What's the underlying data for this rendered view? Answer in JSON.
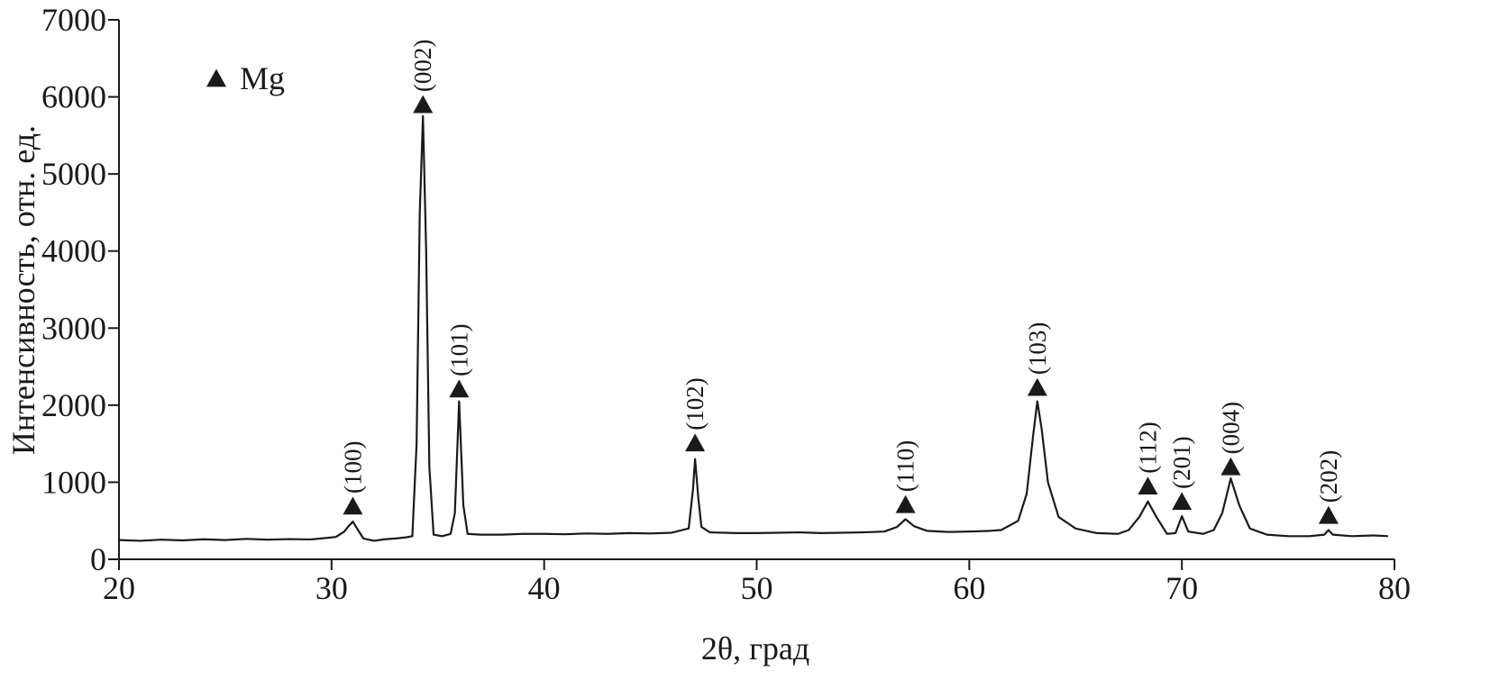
{
  "chart_data": {
    "type": "line",
    "xlabel": "2θ, град",
    "ylabel": "Интенсивность, отн. ед.",
    "xlim": [
      20,
      80
    ],
    "ylim": [
      0,
      7000
    ],
    "xticks": [
      20,
      30,
      40,
      50,
      60,
      70,
      80
    ],
    "yticks": [
      0,
      1000,
      2000,
      3000,
      4000,
      5000,
      6000,
      7000
    ],
    "grid": false,
    "legend": "upper left",
    "x": [
      20,
      21,
      22,
      23,
      24,
      25,
      26,
      27,
      28,
      29,
      29.5,
      30.2,
      30.6,
      30.8,
      31.0,
      31.2,
      31.5,
      32,
      32.5,
      33,
      33.5,
      33.8,
      34.0,
      34.15,
      34.3,
      34.45,
      34.6,
      34.8,
      35.2,
      35.6,
      35.8,
      36.0,
      36.2,
      36.4,
      37,
      38,
      39,
      40,
      41,
      42,
      43,
      44,
      45,
      46,
      46.8,
      47.0,
      47.1,
      47.25,
      47.4,
      47.8,
      49,
      50,
      51,
      52,
      53,
      54,
      55,
      56,
      56.6,
      57.0,
      57.4,
      58,
      59,
      60,
      61,
      61.5,
      62.3,
      62.7,
      63.0,
      63.2,
      63.4,
      63.7,
      64.2,
      65,
      66,
      67,
      67.5,
      68.0,
      68.4,
      68.8,
      69.3,
      69.7,
      70.0,
      70.3,
      71,
      71.5,
      71.9,
      72.3,
      72.7,
      73.2,
      74,
      75,
      76,
      76.7,
      76.9,
      77.1,
      78,
      79,
      79.7
    ],
    "series": [
      {
        "name": "Mg",
        "color": "#1a1a1a",
        "values": [
          250,
          240,
          255,
          245,
          260,
          250,
          265,
          255,
          262,
          258,
          270,
          290,
          360,
          430,
          490,
          400,
          270,
          240,
          260,
          270,
          285,
          300,
          1500,
          4500,
          5750,
          4000,
          1200,
          320,
          300,
          330,
          600,
          2050,
          700,
          330,
          320,
          320,
          330,
          330,
          325,
          335,
          330,
          340,
          335,
          345,
          400,
          900,
          1300,
          800,
          420,
          350,
          340,
          340,
          345,
          350,
          340,
          345,
          350,
          360,
          420,
          520,
          430,
          370,
          355,
          360,
          370,
          380,
          500,
          850,
          1600,
          2050,
          1700,
          1000,
          550,
          400,
          340,
          330,
          380,
          550,
          750,
          550,
          330,
          340,
          560,
          360,
          330,
          380,
          600,
          1050,
          700,
          400,
          320,
          300,
          300,
          320,
          380,
          320,
          300,
          310,
          300
        ]
      }
    ],
    "annotations": [
      {
        "x": 31.0,
        "y": 690,
        "label": "(100)"
      },
      {
        "x": 34.3,
        "y": 5900,
        "label": "(002)"
      },
      {
        "x": 36.0,
        "y": 2210,
        "label": "(101)"
      },
      {
        "x": 47.1,
        "y": 1510,
        "label": "(102)"
      },
      {
        "x": 57.0,
        "y": 710,
        "label": "(110)"
      },
      {
        "x": 63.2,
        "y": 2230,
        "label": "(103)"
      },
      {
        "x": 68.4,
        "y": 950,
        "label": "(112)"
      },
      {
        "x": 70.0,
        "y": 750,
        "label": "(201)"
      },
      {
        "x": 72.3,
        "y": 1200,
        "label": "(004)"
      },
      {
        "x": 76.9,
        "y": 570,
        "label": "(202)"
      }
    ]
  }
}
